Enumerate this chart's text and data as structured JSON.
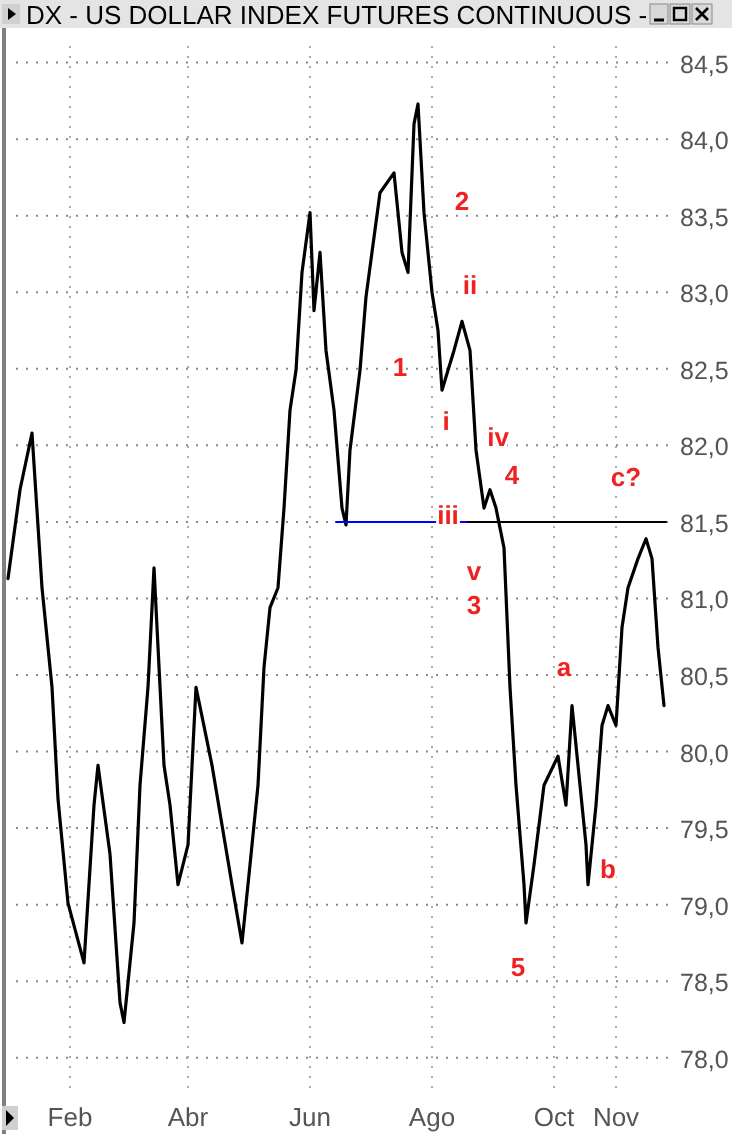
{
  "chart_data": {
    "type": "line",
    "title": "DX - US DOLLAR INDEX FUTURES CONTINUOUS -",
    "x": [
      "--01-01",
      "--01-07",
      "--01-13",
      "--01-18",
      "--01-23",
      "--01-26",
      "--01-31",
      "--02-08",
      "--02-13",
      "--02-15",
      "--02-21",
      "--02-26",
      "--02-28",
      "--03-05",
      "--03-08",
      "--03-12",
      "--03-15",
      "--03-20",
      "--03-23",
      "--03-27",
      "--04-01",
      "--04-05",
      "--04-08",
      "--04-13",
      "--04-18",
      "--04-23",
      "--04-28",
      "--05-02",
      "--05-06",
      "--05-09",
      "--05-12",
      "--05-16",
      "--05-19",
      "--05-22",
      "--05-25",
      "--05-28",
      "--06-01",
      "--06-03",
      "--06-06",
      "--06-09",
      "--06-13",
      "--06-17",
      "--06-19",
      "--06-21",
      "--06-26",
      "--06-29",
      "--07-06",
      "--07-13",
      "--07-17",
      "--07-20",
      "--07-23",
      "--07-25",
      "--07-28",
      "--08-01",
      "--08-04",
      "--08-06",
      "--08-09",
      "--08-12",
      "--08-16",
      "--08-20",
      "--08-23",
      "--08-27",
      "--08-30",
      "--09-02",
      "--09-06",
      "--09-09",
      "--09-12",
      "--09-16",
      "--09-17",
      "--09-21",
      "--09-26",
      "--10-03",
      "--10-07",
      "--10-10",
      "--10-13",
      "--10-17",
      "--10-18",
      "--10-22",
      "--10-25",
      "--10-28",
      "--11-01",
      "--11-04",
      "--11-07",
      "--11-12",
      "--11-16",
      "--11-19",
      "--11-22",
      "--11-25"
    ],
    "series": [
      {
        "color": "#000000",
        "values": [
          81.13,
          81.71,
          82.08,
          81.07,
          80.42,
          79.69,
          79.01,
          78.62,
          79.65,
          79.91,
          79.33,
          78.36,
          78.23,
          78.88,
          79.78,
          80.42,
          81.2,
          79.91,
          79.65,
          79.13,
          79.39,
          80.42,
          80.23,
          79.91,
          79.52,
          79.13,
          78.75,
          79.26,
          79.78,
          80.55,
          80.94,
          81.07,
          81.59,
          82.23,
          82.49,
          83.13,
          83.52,
          82.88,
          83.26,
          82.62,
          82.23,
          81.59,
          81.48,
          81.97,
          82.49,
          82.97,
          83.65,
          83.78,
          83.26,
          83.13,
          84.1,
          84.23,
          83.52,
          83.0,
          82.75,
          82.36,
          82.49,
          82.62,
          82.81,
          82.62,
          81.97,
          81.59,
          81.71,
          81.59,
          81.33,
          80.42,
          79.78,
          79.13,
          78.88,
          79.26,
          79.78,
          79.97,
          79.65,
          80.3,
          79.91,
          79.39,
          79.13,
          79.65,
          80.17,
          80.3,
          80.17,
          80.81,
          81.07,
          81.26,
          81.39,
          81.26,
          80.68,
          80.3
        ]
      },
      {
        "color": "#0000ff",
        "x": [
          "--06-14",
          "--08-19"
        ],
        "values": [
          81.5,
          81.5
        ]
      },
      {
        "color": "#000000",
        "x": [
          "--08-19",
          "--11-26"
        ],
        "values": [
          81.5,
          81.5
        ]
      }
    ],
    "xlim": [
      "--01-01",
      "--12-01"
    ],
    "xticks": [
      {
        "value": "--02-01",
        "label": "Feb"
      },
      {
        "value": "--04-01",
        "label": "Abr"
      },
      {
        "value": "--06-01",
        "label": "Jun"
      },
      {
        "value": "--08-01",
        "label": "Ago"
      },
      {
        "value": "--10-01",
        "label": "Oct"
      },
      {
        "value": "--11-01",
        "label": "Nov"
      }
    ],
    "ylim": [
      77.75,
      84.7
    ],
    "yticks": [
      {
        "value": 78,
        "label": "78,0"
      },
      {
        "value": 78.5,
        "label": "78,5"
      },
      {
        "value": 79,
        "label": "79,0"
      },
      {
        "value": 79.5,
        "label": "79,5"
      },
      {
        "value": 80,
        "label": "80,0"
      },
      {
        "value": 80.5,
        "label": "80,5"
      },
      {
        "value": 81,
        "label": "81,0"
      },
      {
        "value": 81.5,
        "label": "81,5"
      },
      {
        "value": 82,
        "label": "82,0"
      },
      {
        "value": 82.5,
        "label": "82,5"
      },
      {
        "value": 83,
        "label": "83,0"
      },
      {
        "value": 83.5,
        "label": "83,5"
      },
      {
        "value": 84,
        "label": "84,0"
      },
      {
        "value": 84.5,
        "label": "84,5"
      }
    ],
    "grid": true,
    "annotations": [
      "1",
      "2",
      "ii",
      "i",
      "iv",
      "4",
      "iii",
      "v",
      "3",
      "a",
      "b",
      "5",
      "c?"
    ]
  }
}
